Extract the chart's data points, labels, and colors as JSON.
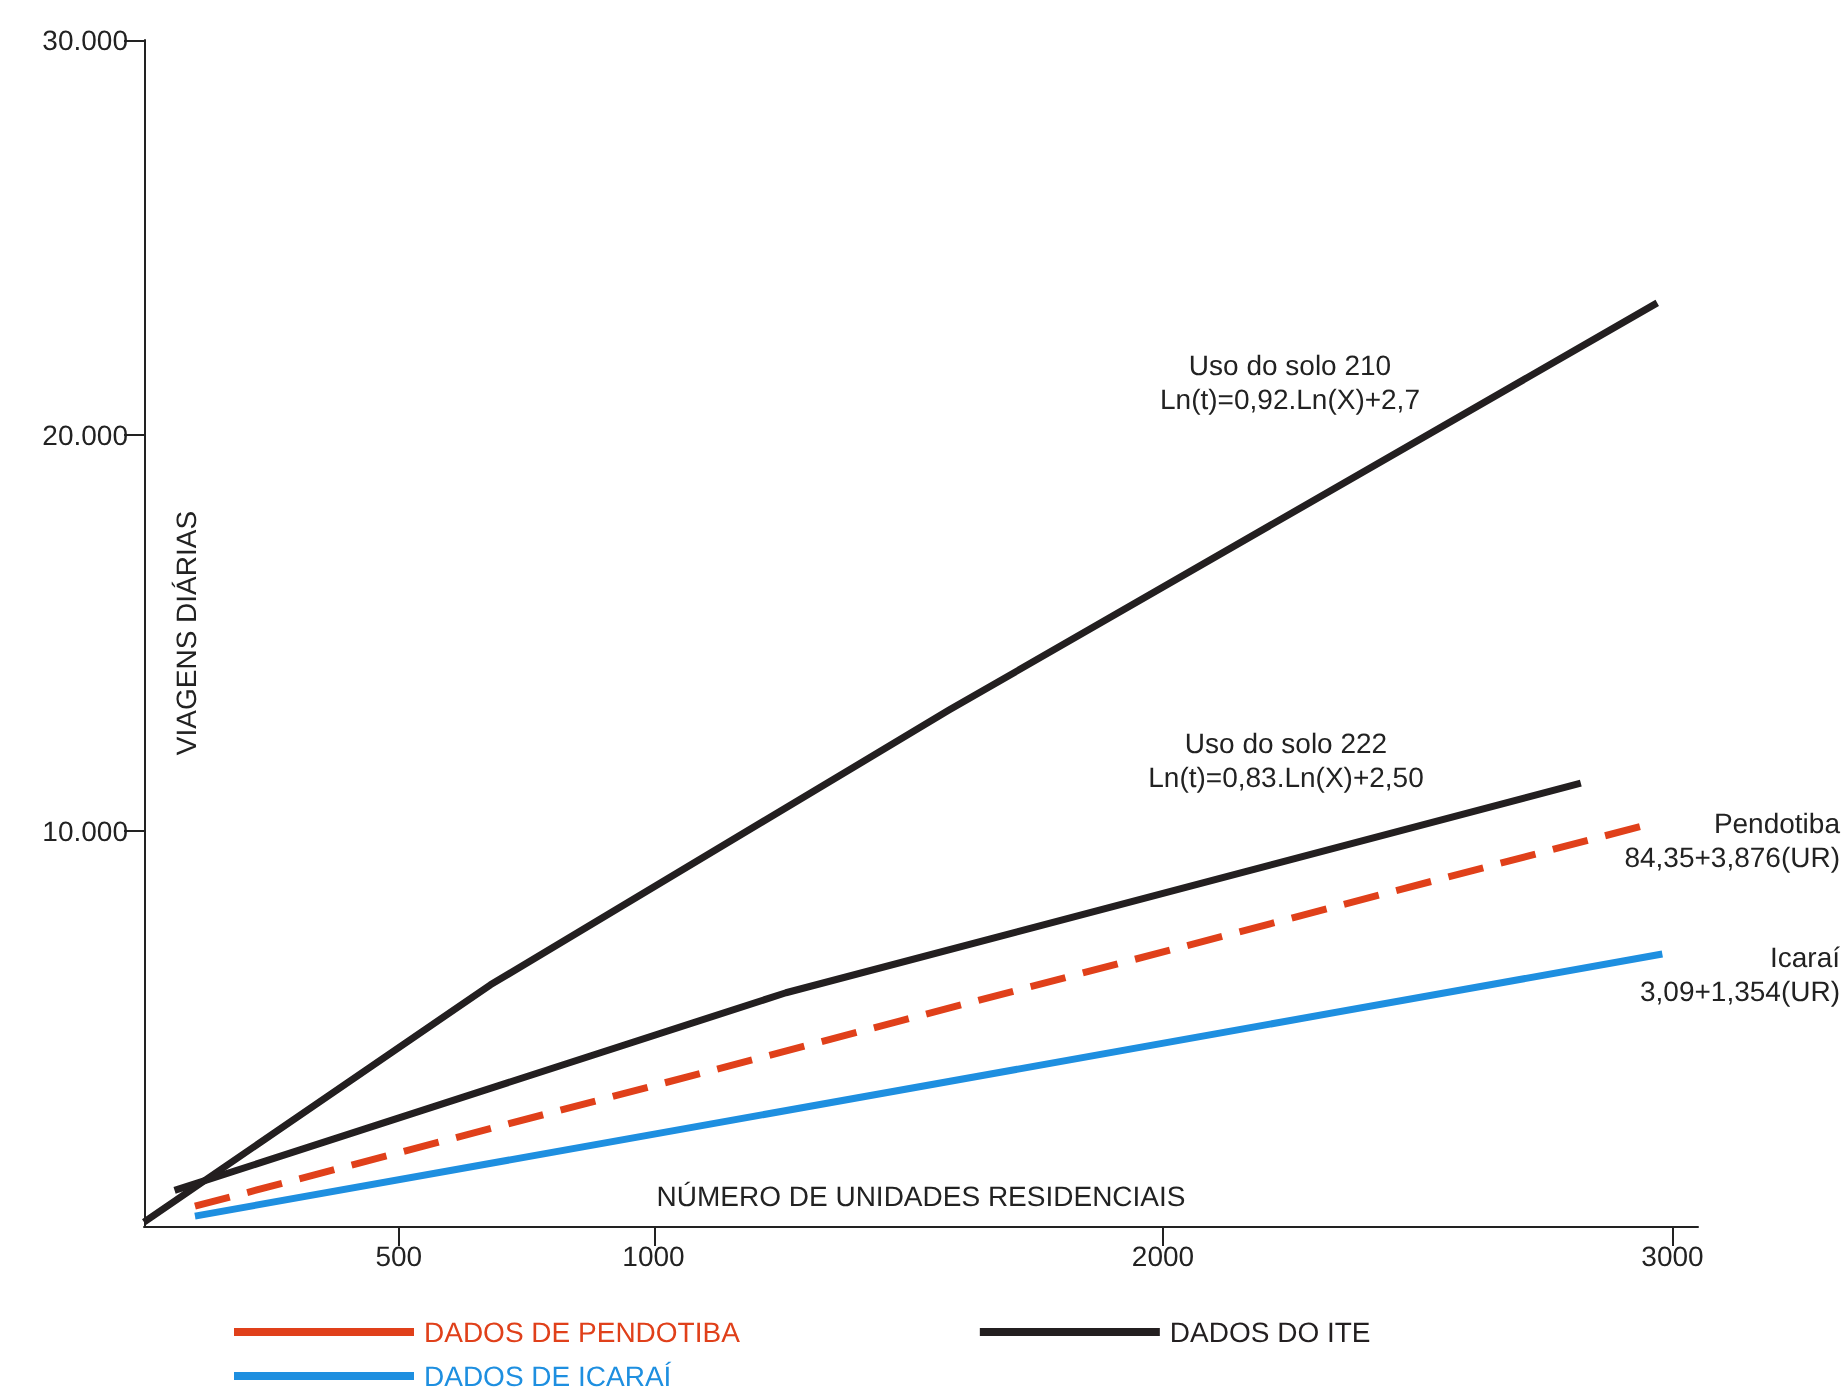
{
  "chart_data": {
    "type": "line",
    "xlabel": "NÚMERO DE UNIDADES RESIDENCIAIS",
    "ylabel": "VIAGENS DIÁRIAS",
    "xlim": [
      0,
      3050
    ],
    "xticks": [
      500,
      1000,
      2000,
      3000
    ],
    "ylim": [
      0,
      30000
    ],
    "yticks": [
      {
        "value": 10000,
        "label": "10.000"
      },
      {
        "value": 20000,
        "label": "20.000"
      },
      {
        "value": 30000,
        "label": "30.000"
      }
    ],
    "series": [
      {
        "name": "DADOS DE PENDOTIBA",
        "color": "#e0401a",
        "line_style": "dashed",
        "x": [
          100,
          2950
        ],
        "values": [
          500,
          10150
        ]
      },
      {
        "name": "DADOS DO ITE",
        "color": "#231f20",
        "line_style": "solid",
        "x": [
          0,
          680,
          1580,
          2970
        ],
        "values": [
          100,
          6100,
          13050,
          23350
        ]
      },
      {
        "color": "#231f20",
        "line_style": "solid",
        "x": [
          60,
          1260,
          2820
        ],
        "values": [
          900,
          5900,
          11200
        ]
      },
      {
        "name": "DADOS DE ICARAÍ",
        "color": "#1e8fe0",
        "line_style": "solid",
        "x": [
          100,
          2980
        ],
        "values": [
          250,
          6880
        ]
      }
    ],
    "annotations": [
      "Uso do solo 210\nLn(t)=0,92.Ln(X)+2,7",
      "Uso do solo 222\nLn(t)=0,83.Ln(X)+2,50",
      "Pendotiba\n84,35+3,876(UR)",
      "Icaraí\n3,09+1,354(UR)"
    ],
    "legend": "bottom",
    "grid": false,
    "marker": "none"
  }
}
